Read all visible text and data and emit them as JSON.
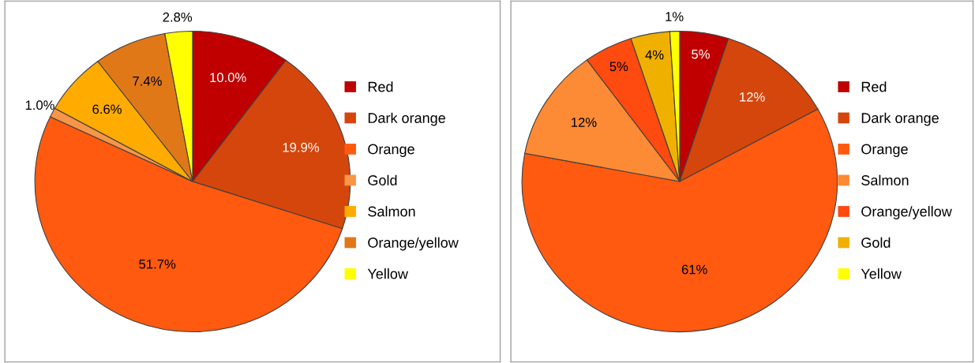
{
  "chart_data": [
    {
      "type": "pie",
      "categories": [
        "Red",
        "Dark orange",
        "Orange",
        "Gold",
        "Salmon",
        "Orange/yellow",
        "Yellow"
      ],
      "values": [
        10.0,
        19.9,
        51.7,
        1.0,
        6.6,
        7.4,
        2.8
      ],
      "value_labels": [
        "10.0%",
        "19.9%",
        "51.7%",
        "1.0%",
        "6.6%",
        "7.4%",
        "2.8%"
      ],
      "colors": [
        "#c00000",
        "#d5460c",
        "#ff5a0f",
        "#f79646",
        "#ffab00",
        "#e07818",
        "#ffff00"
      ],
      "legend": "right"
    },
    {
      "type": "pie",
      "categories": [
        "Red",
        "Dark orange",
        "Orange",
        "Salmon",
        "Orange/yellow",
        "Gold",
        "Yellow"
      ],
      "values": [
        5,
        12,
        61,
        12,
        5,
        4,
        1
      ],
      "value_labels": [
        "5%",
        "12%",
        "61%",
        "12%",
        "5%",
        "4%",
        "1%"
      ],
      "colors": [
        "#c00000",
        "#d5460c",
        "#ff5a0f",
        "#fd8a35",
        "#ff4a10",
        "#f0b000",
        "#ffff00"
      ],
      "legend": "right"
    }
  ]
}
